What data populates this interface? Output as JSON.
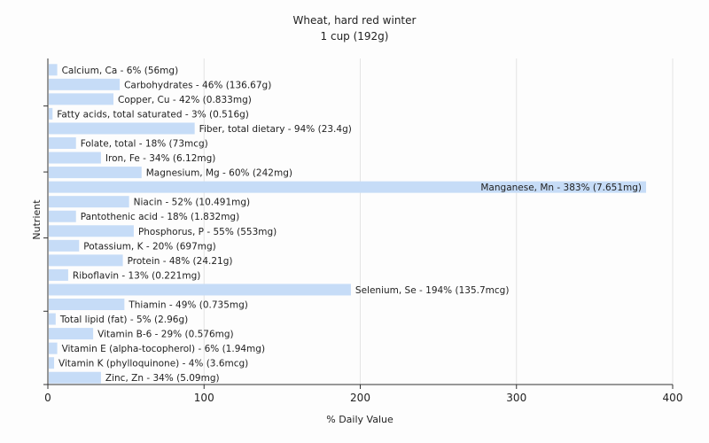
{
  "chart_data": {
    "type": "bar",
    "orientation": "horizontal",
    "title": "Wheat, hard red winter",
    "subtitle": "1 cup (192g)",
    "xlabel": "% Daily Value",
    "ylabel": "Nutrient",
    "xlim": [
      0,
      400
    ],
    "xticks": [
      "0",
      "100",
      "200",
      "300",
      "400"
    ],
    "grid": true,
    "bar_color": "#c6dcf7",
    "categories": [
      "Calcium, Ca",
      "Carbohydrates",
      "Copper, Cu",
      "Fatty acids, total saturated",
      "Fiber, total dietary",
      "Folate, total",
      "Iron, Fe",
      "Magnesium, Mg",
      "Manganese, Mn",
      "Niacin",
      "Pantothenic acid",
      "Phosphorus, P",
      "Potassium, K",
      "Protein",
      "Riboflavin",
      "Selenium, Se",
      "Thiamin",
      "Total lipid (fat)",
      "Vitamin B-6",
      "Vitamin E (alpha-tocopherol)",
      "Vitamin K (phylloquinone)",
      "Zinc, Zn"
    ],
    "values": [
      6,
      46,
      42,
      3,
      94,
      18,
      34,
      60,
      383,
      52,
      18,
      55,
      20,
      48,
      13,
      194,
      49,
      5,
      29,
      6,
      4,
      34
    ],
    "labels": [
      "Calcium, Ca - 6% (56mg)",
      "Carbohydrates - 46% (136.67g)",
      "Copper, Cu - 42% (0.833mg)",
      "Fatty acids, total saturated - 3% (0.516g)",
      "Fiber, total dietary - 94% (23.4g)",
      "Folate, total - 18% (73mcg)",
      "Iron, Fe - 34% (6.12mg)",
      "Magnesium, Mg - 60% (242mg)",
      "Manganese, Mn - 383% (7.651mg)",
      "Niacin - 52% (10.491mg)",
      "Pantothenic acid - 18% (1.832mg)",
      "Phosphorus, P - 55% (553mg)",
      "Potassium, K - 20% (697mg)",
      "Protein - 48% (24.21g)",
      "Riboflavin - 13% (0.221mg)",
      "Selenium, Se - 194% (135.7mcg)",
      "Thiamin - 49% (0.735mg)",
      "Total lipid (fat) - 5% (2.96g)",
      "Vitamin B-6 - 29% (0.576mg)",
      "Vitamin E (alpha-tocopherol) - 6% (1.94mg)",
      "Vitamin K (phylloquinone) - 4% (3.6mcg)",
      "Zinc, Zn - 34% (5.09mg)"
    ]
  }
}
